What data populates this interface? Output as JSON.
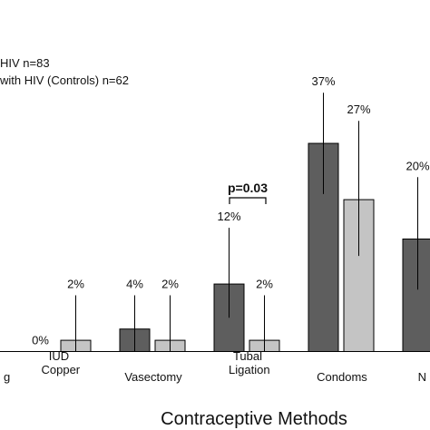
{
  "chart_data": {
    "type": "bar",
    "x_label": "Contraceptive Methods",
    "categories": [
      "g",
      "IUD Copper",
      "Vasectomy",
      "Tubal Ligation",
      "Condoms",
      "N"
    ],
    "series": [
      {
        "name": "HIV n=83",
        "color": "#5e5e5e",
        "values": [
          null,
          0,
          4,
          12,
          37,
          20
        ],
        "value_labels": [
          null,
          "0%",
          "4%",
          "12%",
          "37%",
          "20%"
        ],
        "error_low": [
          null,
          null,
          0,
          6,
          28,
          11
        ],
        "error_high": [
          null,
          null,
          10,
          22,
          46,
          31
        ]
      },
      {
        "name": "with HIV (Controls) n=62",
        "color": "#c4c4c4",
        "values": [
          null,
          2,
          2,
          2,
          27,
          null
        ],
        "value_labels": [
          null,
          "2%",
          "2%",
          "2%",
          "27%",
          null
        ],
        "error_low": [
          null,
          0,
          0,
          0,
          17,
          null
        ],
        "error_high": [
          null,
          10,
          10,
          10,
          41,
          null
        ]
      }
    ],
    "ylim": [
      0,
      62
    ],
    "annotations": [
      {
        "text": "p=0.03",
        "category": 3
      }
    ]
  }
}
